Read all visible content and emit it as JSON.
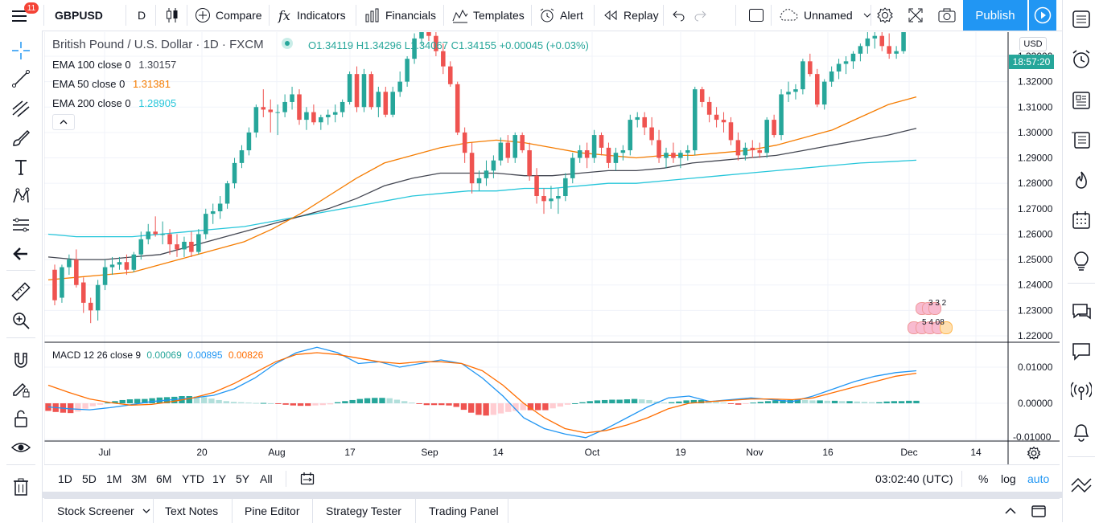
{
  "toolbar": {
    "badge": "11",
    "symbol": "GBPUSD",
    "interval": "D",
    "compare": "Compare",
    "indicators": "Indicators",
    "financials": "Financials",
    "templates": "Templates",
    "alert": "Alert",
    "replay": "Replay",
    "layout_name": "Unnamed",
    "publish": "Publish"
  },
  "legend": {
    "title": "British Pound / U.S. Dollar · 1D · FXCM",
    "ohlc": "O1.34119 H1.34296 L1.34067 C1.34155 +0.00045 (+0.03%)",
    "ema100_label": "EMA 100 close 0",
    "ema100_value": "1.30157",
    "ema50_label": "EMA 50 close 0",
    "ema50_value": "1.31381",
    "ema200_label": "EMA 200 close 0",
    "ema200_value": "1.28905",
    "macd_label": "MACD 12 26 close 9",
    "macd_hist": "0.00069",
    "macd_line": "0.00895",
    "macd_signal": "0.00826"
  },
  "price_axis": {
    "currency": "USD",
    "ticks": [
      "1.33000",
      "1.32000",
      "1.31000",
      "1.30000",
      "1.29000",
      "1.28000",
      "1.27000",
      "1.26000",
      "1.25000",
      "1.24000",
      "1.23000",
      "1.22000"
    ],
    "current_label": "18:57:20",
    "macd_ticks": [
      "0.01000",
      "0.00000",
      "-0.01000"
    ]
  },
  "time_axis": {
    "ticks": [
      "Jul",
      "20",
      "Aug",
      "17",
      "Sep",
      "14",
      "Oct",
      "19",
      "Nov",
      "16",
      "Dec",
      "14"
    ]
  },
  "events": {
    "row1": "3 3 2",
    "row2": "5 4 08"
  },
  "bottom": {
    "ranges": [
      "1D",
      "5D",
      "1M",
      "3M",
      "6M",
      "YTD",
      "1Y",
      "5Y",
      "All"
    ],
    "clock": "03:02:40 (UTC)",
    "percent": "%",
    "log": "log",
    "auto": "auto"
  },
  "panels": [
    "Stock Screener",
    "Text Notes",
    "Pine Editor",
    "Strategy Tester",
    "Trading Panel"
  ],
  "colors": {
    "up": "#26a69a",
    "down": "#ef5350",
    "ema50": "#f57c00",
    "ema100": "#434651",
    "ema200": "#26c6da",
    "macd": "#2196f3",
    "signal": "#ff6d00",
    "accent": "#2196f3"
  },
  "chart_data": {
    "type": "candlestick",
    "symbol": "GBPUSD",
    "interval": "1D",
    "ylim": [
      1.22,
      1.345
    ],
    "candles": [
      {
        "o": 1.246,
        "h": 1.248,
        "l": 1.232,
        "c": 1.234
      },
      {
        "o": 1.235,
        "h": 1.248,
        "l": 1.233,
        "c": 1.247
      },
      {
        "o": 1.247,
        "h": 1.252,
        "l": 1.244,
        "c": 1.25
      },
      {
        "o": 1.25,
        "h": 1.254,
        "l": 1.239,
        "c": 1.24
      },
      {
        "o": 1.241,
        "h": 1.243,
        "l": 1.229,
        "c": 1.233
      },
      {
        "o": 1.233,
        "h": 1.235,
        "l": 1.225,
        "c": 1.23
      },
      {
        "o": 1.23,
        "h": 1.242,
        "l": 1.226,
        "c": 1.24
      },
      {
        "o": 1.24,
        "h": 1.25,
        "l": 1.238,
        "c": 1.247
      },
      {
        "o": 1.247,
        "h": 1.251,
        "l": 1.244,
        "c": 1.248
      },
      {
        "o": 1.248,
        "h": 1.251,
        "l": 1.246,
        "c": 1.249
      },
      {
        "o": 1.249,
        "h": 1.252,
        "l": 1.244,
        "c": 1.246
      },
      {
        "o": 1.246,
        "h": 1.253,
        "l": 1.245,
        "c": 1.252
      },
      {
        "o": 1.252,
        "h": 1.261,
        "l": 1.25,
        "c": 1.258
      },
      {
        "o": 1.258,
        "h": 1.264,
        "l": 1.256,
        "c": 1.261
      },
      {
        "o": 1.261,
        "h": 1.267,
        "l": 1.259,
        "c": 1.26
      },
      {
        "o": 1.26,
        "h": 1.265,
        "l": 1.256,
        "c": 1.26
      },
      {
        "o": 1.26,
        "h": 1.262,
        "l": 1.252,
        "c": 1.256
      },
      {
        "o": 1.256,
        "h": 1.26,
        "l": 1.251,
        "c": 1.254
      },
      {
        "o": 1.254,
        "h": 1.259,
        "l": 1.251,
        "c": 1.257
      },
      {
        "o": 1.257,
        "h": 1.261,
        "l": 1.251,
        "c": 1.253
      },
      {
        "o": 1.253,
        "h": 1.262,
        "l": 1.252,
        "c": 1.26
      },
      {
        "o": 1.26,
        "h": 1.27,
        "l": 1.258,
        "c": 1.268
      },
      {
        "o": 1.268,
        "h": 1.272,
        "l": 1.264,
        "c": 1.269
      },
      {
        "o": 1.269,
        "h": 1.275,
        "l": 1.266,
        "c": 1.272
      },
      {
        "o": 1.272,
        "h": 1.281,
        "l": 1.27,
        "c": 1.28
      },
      {
        "o": 1.28,
        "h": 1.29,
        "l": 1.278,
        "c": 1.288
      },
      {
        "o": 1.288,
        "h": 1.295,
        "l": 1.286,
        "c": 1.293
      },
      {
        "o": 1.293,
        "h": 1.302,
        "l": 1.291,
        "c": 1.3
      },
      {
        "o": 1.3,
        "h": 1.311,
        "l": 1.298,
        "c": 1.31
      },
      {
        "o": 1.31,
        "h": 1.317,
        "l": 1.306,
        "c": 1.309
      },
      {
        "o": 1.309,
        "h": 1.313,
        "l": 1.3,
        "c": 1.308
      },
      {
        "o": 1.308,
        "h": 1.311,
        "l": 1.299,
        "c": 1.308
      },
      {
        "o": 1.308,
        "h": 1.315,
        "l": 1.306,
        "c": 1.312
      },
      {
        "o": 1.312,
        "h": 1.318,
        "l": 1.309,
        "c": 1.315
      },
      {
        "o": 1.315,
        "h": 1.317,
        "l": 1.303,
        "c": 1.305
      },
      {
        "o": 1.305,
        "h": 1.31,
        "l": 1.301,
        "c": 1.308
      },
      {
        "o": 1.308,
        "h": 1.311,
        "l": 1.303,
        "c": 1.304
      },
      {
        "o": 1.304,
        "h": 1.307,
        "l": 1.301,
        "c": 1.306
      },
      {
        "o": 1.306,
        "h": 1.309,
        "l": 1.303,
        "c": 1.307
      },
      {
        "o": 1.307,
        "h": 1.311,
        "l": 1.304,
        "c": 1.308
      },
      {
        "o": 1.308,
        "h": 1.313,
        "l": 1.306,
        "c": 1.312
      },
      {
        "o": 1.312,
        "h": 1.324,
        "l": 1.311,
        "c": 1.323
      },
      {
        "o": 1.323,
        "h": 1.326,
        "l": 1.308,
        "c": 1.31
      },
      {
        "o": 1.31,
        "h": 1.325,
        "l": 1.308,
        "c": 1.323
      },
      {
        "o": 1.323,
        "h": 1.324,
        "l": 1.309,
        "c": 1.31
      },
      {
        "o": 1.31,
        "h": 1.318,
        "l": 1.306,
        "c": 1.316
      },
      {
        "o": 1.316,
        "h": 1.318,
        "l": 1.306,
        "c": 1.307
      },
      {
        "o": 1.307,
        "h": 1.318,
        "l": 1.306,
        "c": 1.316
      },
      {
        "o": 1.316,
        "h": 1.324,
        "l": 1.314,
        "c": 1.32
      },
      {
        "o": 1.32,
        "h": 1.33,
        "l": 1.318,
        "c": 1.329
      },
      {
        "o": 1.329,
        "h": 1.339,
        "l": 1.327,
        "c": 1.337
      },
      {
        "o": 1.337,
        "h": 1.342,
        "l": 1.334,
        "c": 1.34
      },
      {
        "o": 1.34,
        "h": 1.343,
        "l": 1.336,
        "c": 1.338
      },
      {
        "o": 1.338,
        "h": 1.341,
        "l": 1.33,
        "c": 1.332
      },
      {
        "o": 1.332,
        "h": 1.335,
        "l": 1.323,
        "c": 1.326
      },
      {
        "o": 1.326,
        "h": 1.328,
        "l": 1.318,
        "c": 1.319
      },
      {
        "o": 1.319,
        "h": 1.32,
        "l": 1.299,
        "c": 1.3
      },
      {
        "o": 1.3,
        "h": 1.302,
        "l": 1.288,
        "c": 1.292
      },
      {
        "o": 1.292,
        "h": 1.296,
        "l": 1.276,
        "c": 1.28
      },
      {
        "o": 1.28,
        "h": 1.285,
        "l": 1.277,
        "c": 1.282
      },
      {
        "o": 1.282,
        "h": 1.289,
        "l": 1.279,
        "c": 1.285
      },
      {
        "o": 1.285,
        "h": 1.291,
        "l": 1.282,
        "c": 1.289
      },
      {
        "o": 1.289,
        "h": 1.298,
        "l": 1.287,
        "c": 1.296
      },
      {
        "o": 1.296,
        "h": 1.299,
        "l": 1.288,
        "c": 1.29
      },
      {
        "o": 1.29,
        "h": 1.3,
        "l": 1.288,
        "c": 1.299
      },
      {
        "o": 1.299,
        "h": 1.3,
        "l": 1.292,
        "c": 1.293
      },
      {
        "o": 1.293,
        "h": 1.296,
        "l": 1.281,
        "c": 1.283
      },
      {
        "o": 1.283,
        "h": 1.286,
        "l": 1.272,
        "c": 1.275
      },
      {
        "o": 1.275,
        "h": 1.278,
        "l": 1.268,
        "c": 1.273
      },
      {
        "o": 1.273,
        "h": 1.279,
        "l": 1.27,
        "c": 1.274
      },
      {
        "o": 1.274,
        "h": 1.278,
        "l": 1.268,
        "c": 1.275
      },
      {
        "o": 1.275,
        "h": 1.284,
        "l": 1.273,
        "c": 1.282
      },
      {
        "o": 1.282,
        "h": 1.292,
        "l": 1.28,
        "c": 1.29
      },
      {
        "o": 1.29,
        "h": 1.295,
        "l": 1.288,
        "c": 1.293
      },
      {
        "o": 1.293,
        "h": 1.296,
        "l": 1.286,
        "c": 1.29
      },
      {
        "o": 1.29,
        "h": 1.301,
        "l": 1.288,
        "c": 1.299
      },
      {
        "o": 1.299,
        "h": 1.3,
        "l": 1.291,
        "c": 1.294
      },
      {
        "o": 1.294,
        "h": 1.296,
        "l": 1.286,
        "c": 1.288
      },
      {
        "o": 1.288,
        "h": 1.294,
        "l": 1.285,
        "c": 1.292
      },
      {
        "o": 1.292,
        "h": 1.295,
        "l": 1.289,
        "c": 1.293
      },
      {
        "o": 1.293,
        "h": 1.307,
        "l": 1.291,
        "c": 1.305
      },
      {
        "o": 1.305,
        "h": 1.308,
        "l": 1.302,
        "c": 1.306
      },
      {
        "o": 1.306,
        "h": 1.308,
        "l": 1.299,
        "c": 1.302
      },
      {
        "o": 1.302,
        "h": 1.306,
        "l": 1.295,
        "c": 1.297
      },
      {
        "o": 1.297,
        "h": 1.301,
        "l": 1.288,
        "c": 1.29
      },
      {
        "o": 1.29,
        "h": 1.294,
        "l": 1.286,
        "c": 1.292
      },
      {
        "o": 1.292,
        "h": 1.296,
        "l": 1.288,
        "c": 1.29
      },
      {
        "o": 1.29,
        "h": 1.293,
        "l": 1.286,
        "c": 1.292
      },
      {
        "o": 1.292,
        "h": 1.295,
        "l": 1.289,
        "c": 1.293
      },
      {
        "o": 1.293,
        "h": 1.318,
        "l": 1.291,
        "c": 1.317
      },
      {
        "o": 1.317,
        "h": 1.318,
        "l": 1.31,
        "c": 1.312
      },
      {
        "o": 1.312,
        "h": 1.314,
        "l": 1.304,
        "c": 1.307
      },
      {
        "o": 1.307,
        "h": 1.31,
        "l": 1.302,
        "c": 1.305
      },
      {
        "o": 1.305,
        "h": 1.308,
        "l": 1.3,
        "c": 1.304
      },
      {
        "o": 1.304,
        "h": 1.306,
        "l": 1.295,
        "c": 1.297
      },
      {
        "o": 1.297,
        "h": 1.3,
        "l": 1.289,
        "c": 1.291
      },
      {
        "o": 1.291,
        "h": 1.296,
        "l": 1.289,
        "c": 1.294
      },
      {
        "o": 1.294,
        "h": 1.297,
        "l": 1.29,
        "c": 1.293
      },
      {
        "o": 1.293,
        "h": 1.296,
        "l": 1.29,
        "c": 1.292
      },
      {
        "o": 1.292,
        "h": 1.306,
        "l": 1.29,
        "c": 1.305
      },
      {
        "o": 1.305,
        "h": 1.307,
        "l": 1.298,
        "c": 1.299
      },
      {
        "o": 1.299,
        "h": 1.317,
        "l": 1.297,
        "c": 1.315
      },
      {
        "o": 1.315,
        "h": 1.32,
        "l": 1.312,
        "c": 1.316
      },
      {
        "o": 1.316,
        "h": 1.319,
        "l": 1.313,
        "c": 1.317
      },
      {
        "o": 1.317,
        "h": 1.329,
        "l": 1.315,
        "c": 1.328
      },
      {
        "o": 1.328,
        "h": 1.331,
        "l": 1.322,
        "c": 1.323
      },
      {
        "o": 1.323,
        "h": 1.325,
        "l": 1.31,
        "c": 1.311
      },
      {
        "o": 1.311,
        "h": 1.321,
        "l": 1.309,
        "c": 1.32
      },
      {
        "o": 1.32,
        "h": 1.326,
        "l": 1.318,
        "c": 1.324
      },
      {
        "o": 1.324,
        "h": 1.329,
        "l": 1.321,
        "c": 1.327
      },
      {
        "o": 1.327,
        "h": 1.33,
        "l": 1.323,
        "c": 1.328
      },
      {
        "o": 1.328,
        "h": 1.332,
        "l": 1.325,
        "c": 1.331
      },
      {
        "o": 1.331,
        "h": 1.335,
        "l": 1.328,
        "c": 1.334
      },
      {
        "o": 1.334,
        "h": 1.34,
        "l": 1.331,
        "c": 1.337
      },
      {
        "o": 1.337,
        "h": 1.34,
        "l": 1.333,
        "c": 1.338
      },
      {
        "o": 1.338,
        "h": 1.34,
        "l": 1.332,
        "c": 1.334
      },
      {
        "o": 1.334,
        "h": 1.339,
        "l": 1.329,
        "c": 1.331
      },
      {
        "o": 1.331,
        "h": 1.334,
        "l": 1.329,
        "c": 1.332
      },
      {
        "o": 1.332,
        "h": 1.343,
        "l": 1.331,
        "c": 1.3412
      },
      {
        "o": 1.34119,
        "h": 1.34296,
        "l": 1.34067,
        "c": 1.34155
      }
    ],
    "ema50": [
      1.242,
      1.243,
      1.244,
      1.245,
      1.248,
      1.251,
      1.254,
      1.257,
      1.262,
      1.268,
      1.275,
      1.282,
      1.288,
      1.291,
      1.294,
      1.296,
      1.297,
      1.296,
      1.294,
      1.292,
      1.291,
      1.29,
      1.291,
      1.291,
      1.292,
      1.293,
      1.295,
      1.298,
      1.301,
      1.306,
      1.311,
      1.314
    ],
    "ema100": [
      1.251,
      1.25,
      1.25,
      1.251,
      1.252,
      1.255,
      1.258,
      1.261,
      1.264,
      1.267,
      1.27,
      1.274,
      1.279,
      1.282,
      1.284,
      1.284,
      1.284,
      1.283,
      1.283,
      1.284,
      1.285,
      1.285,
      1.286,
      1.288,
      1.289,
      1.29,
      1.291,
      1.293,
      1.295,
      1.297,
      1.299,
      1.3016
    ],
    "ema200": [
      1.26,
      1.259,
      1.259,
      1.259,
      1.26,
      1.261,
      1.262,
      1.263,
      1.265,
      1.267,
      1.269,
      1.271,
      1.273,
      1.275,
      1.276,
      1.277,
      1.277,
      1.278,
      1.278,
      1.279,
      1.28,
      1.28,
      1.281,
      1.282,
      1.283,
      1.284,
      1.285,
      1.286,
      1.287,
      1.288,
      1.2885,
      1.2891
    ],
    "macd_ylim": [
      -0.0105,
      0.0155
    ],
    "macd": [
      -0.001,
      -0.0015,
      -0.0018,
      -0.0012,
      -0.0004,
      0.0005,
      0.001,
      0.0015,
      0.0022,
      0.004,
      0.007,
      0.011,
      0.014,
      0.0155,
      0.014,
      0.011,
      0.0115,
      0.01,
      0.011,
      0.012,
      0.011,
      0.007,
      0.002,
      -0.004,
      -0.007,
      -0.0085,
      -0.0095,
      -0.007,
      -0.004,
      -0.001,
      0.0015,
      0.002,
      0.0005,
      0.001,
      0.0015,
      0.001,
      0.0005,
      0.002,
      0.004,
      0.006,
      0.0075,
      0.0085,
      0.009
    ],
    "signal": [
      0.005,
      0.003,
      0.0012,
      0.0002,
      -0.0005,
      -0.0003,
      0.0005,
      0.0015,
      0.003,
      0.0055,
      0.0085,
      0.0115,
      0.0135,
      0.014,
      0.0135,
      0.0125,
      0.0115,
      0.011,
      0.0115,
      0.0115,
      0.011,
      0.009,
      0.005,
      0.0,
      -0.004,
      -0.007,
      -0.0082,
      -0.0075,
      -0.006,
      -0.004,
      -0.0015,
      0.0,
      0.0005,
      0.0008,
      0.0012,
      0.0012,
      0.001,
      0.0015,
      0.003,
      0.0045,
      0.006,
      0.0075,
      0.0083
    ],
    "histogram": [
      -0.0021,
      -0.0024,
      -0.0026,
      -0.0027,
      -0.0023,
      -0.0015,
      -0.0008,
      -0.0004,
      0.0002,
      0.0006,
      0.0009,
      0.0011,
      0.0012,
      0.0012,
      0.0014,
      0.0016,
      0.0017,
      0.0018,
      0.002,
      0.002,
      0.0019,
      0.0017,
      0.0013,
      0.0009,
      0.0006,
      0.0004,
      0.0003,
      0.0002,
      0.0001,
      0.0001,
      0.0,
      -0.0002,
      -0.0004,
      -0.0006,
      -0.0007,
      -0.0007,
      -0.0006,
      -0.0005,
      -0.0003,
      0.0003,
      0.0006,
      0.0009,
      0.0012,
      0.0014,
      0.0015,
      0.0015,
      0.0014,
      0.001,
      0.0006,
      0.0002,
      -0.0002,
      -0.0005,
      -0.0005,
      -0.0005,
      -0.0006,
      -0.001,
      -0.0018,
      -0.0026,
      -0.0032,
      -0.0034,
      -0.0032,
      -0.0028,
      -0.0024,
      -0.0021,
      -0.0019,
      -0.0019,
      -0.0019,
      -0.0019,
      -0.0014,
      -0.0009,
      -0.0004,
      0.0,
      0.0003,
      0.0006,
      0.0008,
      0.0009,
      0.001,
      0.001,
      0.0011,
      0.0012,
      0.0011,
      0.0009,
      0.0005,
      0.0002,
      0.0003,
      0.0005,
      0.0008,
      0.0009,
      0.0009,
      0.0007,
      0.0004,
      0.0002,
      -0.0002,
      -0.0004,
      -0.0002,
      0.0002,
      0.0004,
      0.0006,
      0.0008,
      0.0009,
      0.0009,
      0.001,
      0.0009,
      0.0008,
      0.0008,
      0.0007,
      0.0007,
      0.0006,
      0.0006,
      0.0005,
      0.0004,
      0.0003,
      0.0003,
      0.0005,
      0.0006,
      0.0006,
      0.0007,
      0.0007
    ]
  }
}
